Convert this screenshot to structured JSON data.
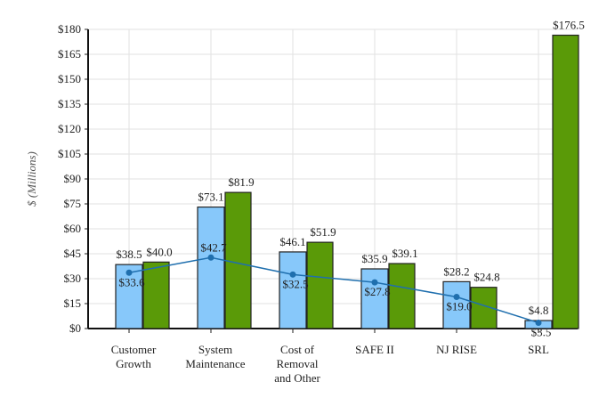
{
  "chart_data": {
    "type": "bar",
    "ylabel": "$ (Millions)",
    "ylim": [
      0,
      180
    ],
    "ytick_step": 15,
    "ytick_labels": [
      "$0",
      "$15",
      "$30",
      "$45",
      "$60",
      "$75",
      "$90",
      "$105",
      "$120",
      "$135",
      "$150",
      "$165",
      "$180"
    ],
    "grid": true,
    "categories": [
      [
        "Customer",
        "Growth"
      ],
      [
        "System",
        "Maintenance"
      ],
      [
        "Cost of",
        "Removal",
        "and Other"
      ],
      [
        "SAFE II"
      ],
      [
        "NJ RISE"
      ],
      [
        "SRL"
      ]
    ],
    "series": [
      {
        "kind": "bar",
        "color": "#87c8fa",
        "values": [
          38.5,
          73.1,
          46.1,
          35.9,
          28.2,
          4.8
        ],
        "labels": [
          "$38.5",
          "$73.1",
          "$46.1",
          "$35.9",
          "$28.2",
          "$4.8"
        ]
      },
      {
        "kind": "bar",
        "color": "#5a9a08",
        "values": [
          40.0,
          81.9,
          51.9,
          39.1,
          24.8,
          176.5
        ],
        "labels": [
          "$40.0",
          "$81.9",
          "$51.9",
          "$39.1",
          "$24.8",
          "$176.5"
        ]
      },
      {
        "kind": "line",
        "color": "#1f6fae",
        "values": [
          33.6,
          42.7,
          32.5,
          27.8,
          19.0,
          3.5
        ],
        "labels": [
          "$33.6",
          "$42.7",
          "$32.5",
          "$27.8",
          "$19.0",
          "$3.5"
        ]
      }
    ]
  }
}
